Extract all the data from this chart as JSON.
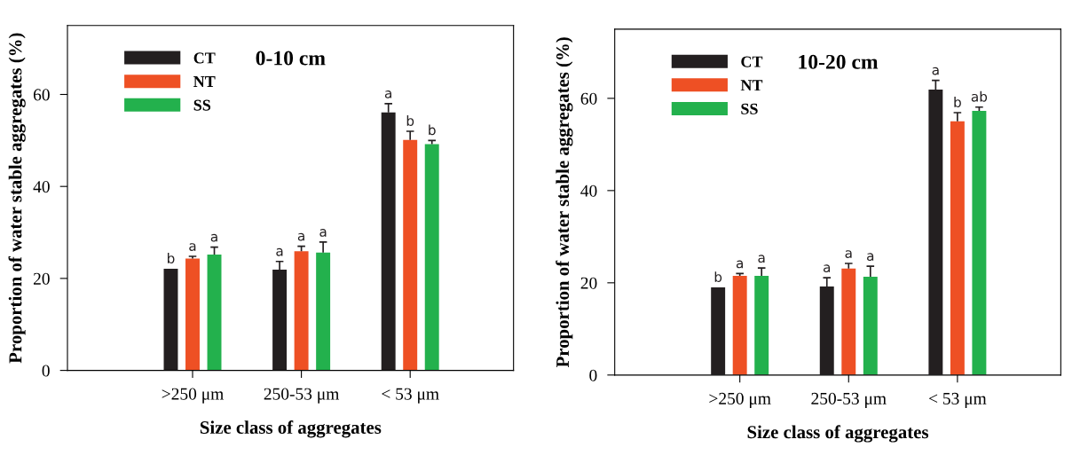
{
  "chart_data": [
    {
      "type": "bar",
      "title": "0-10 cm",
      "xlabel": "Size class of aggregates",
      "ylabel": "Proportion of water stable aggregates (%)",
      "categories": [
        ">250 μm",
        "250-53 μm",
        "< 53 μm"
      ],
      "ylim": [
        0,
        75
      ],
      "yticks": [
        0,
        20,
        40,
        60
      ],
      "legend": "top left",
      "grid": false,
      "series": [
        {
          "name": "CT",
          "color": "#231f20",
          "values": [
            22.1,
            21.9,
            56.1
          ],
          "errors": [
            null,
            [
              21.9,
              23.7
            ],
            [
              56.1,
              58.0
            ]
          ],
          "value_labels": [
            "b",
            "a",
            "a"
          ]
        },
        {
          "name": "NT",
          "color": "#ee5024",
          "values": [
            24.3,
            25.9,
            50.1
          ],
          "errors": [
            [
              24.3,
              24.8
            ],
            [
              25.9,
              27.0
            ],
            [
              50.1,
              52.0
            ]
          ],
          "value_labels": [
            "a",
            "a",
            "b"
          ]
        },
        {
          "name": "SS",
          "color": "#23b14d",
          "values": [
            25.2,
            25.6,
            49.2
          ],
          "errors": [
            [
              25.2,
              26.8
            ],
            [
              25.6,
              27.9
            ],
            [
              49.2,
              50.0
            ]
          ],
          "value_labels": [
            "a",
            "a",
            "b"
          ]
        }
      ]
    },
    {
      "type": "bar",
      "title": "10-20 cm",
      "xlabel": "Size class of aggregates",
      "ylabel": "Proportion of water stable aggregates (%)",
      "categories": [
        ">250 μm",
        "250-53 μm",
        "< 53 μm"
      ],
      "ylim": [
        0,
        75
      ],
      "yticks": [
        0,
        20,
        40,
        60
      ],
      "legend": "top left",
      "grid": false,
      "series": [
        {
          "name": "CT",
          "color": "#231f20",
          "values": [
            19.0,
            19.2,
            61.9
          ],
          "errors": [
            null,
            [
              19.2,
              21.1
            ],
            [
              61.9,
              63.9
            ]
          ],
          "value_labels": [
            "b",
            "a",
            "a"
          ]
        },
        {
          "name": "NT",
          "color": "#ee5024",
          "values": [
            21.5,
            23.1,
            55.0
          ],
          "errors": [
            [
              21.5,
              22.0
            ],
            [
              23.1,
              24.2
            ],
            [
              55.0,
              56.9
            ]
          ],
          "value_labels": [
            "a",
            "a",
            "b"
          ]
        },
        {
          "name": "SS",
          "color": "#23b14d",
          "values": [
            21.5,
            21.3,
            57.3
          ],
          "errors": [
            [
              21.5,
              23.2
            ],
            [
              21.3,
              23.6
            ],
            [
              57.3,
              58.1
            ]
          ],
          "value_labels": [
            "a",
            "a",
            "ab"
          ]
        }
      ]
    }
  ]
}
